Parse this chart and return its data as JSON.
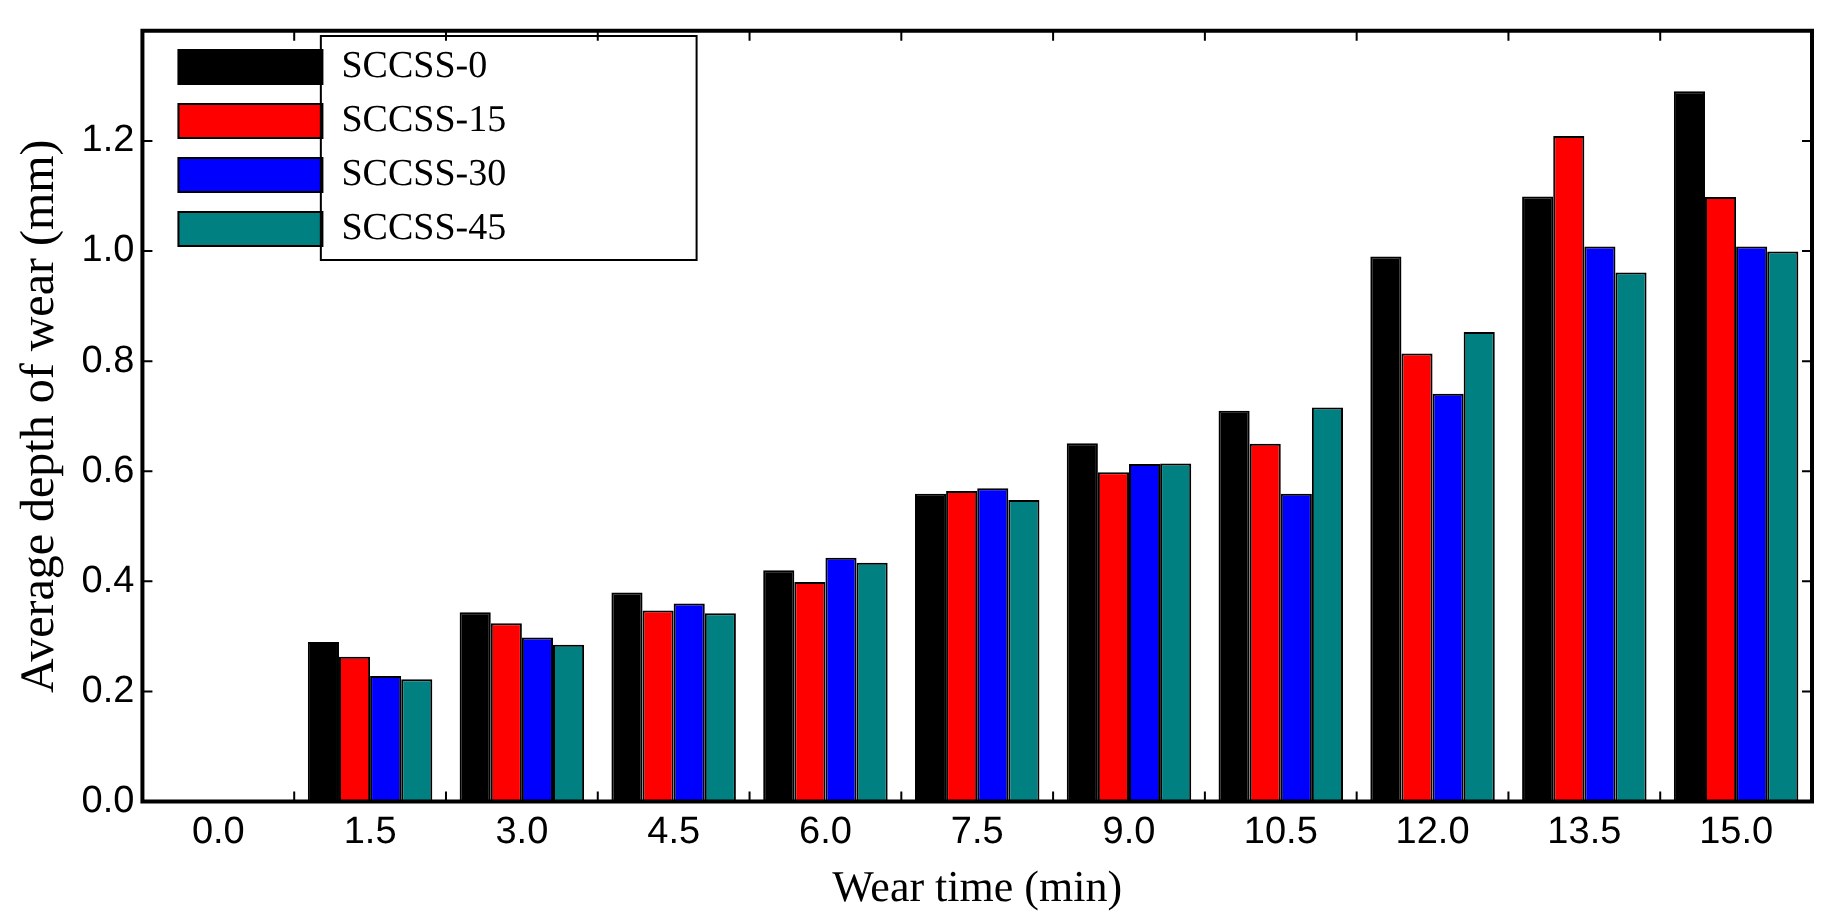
{
  "chart_data": {
    "type": "bar",
    "xlabel": "Wear time (min)",
    "ylabel": "Average depth of wear (mm)",
    "categories": [
      "0.0",
      "1.5",
      "3.0",
      "4.5",
      "6.0",
      "7.5",
      "9.0",
      "10.5",
      "12.0",
      "13.5",
      "15.0"
    ],
    "series": [
      {
        "name": "SCCSS-0",
        "color": "#000000",
        "values": [
          null,
          0.29,
          0.344,
          0.38,
          0.42,
          0.559,
          0.651,
          0.71,
          0.99,
          1.099,
          1.29
        ]
      },
      {
        "name": "SCCSS-15",
        "color": "#ff0000",
        "values": [
          null,
          0.263,
          0.324,
          0.347,
          0.399,
          0.564,
          0.598,
          0.65,
          0.814,
          1.209,
          1.098
        ]
      },
      {
        "name": "SCCSS-30",
        "color": "#0000ff",
        "values": [
          null,
          0.228,
          0.298,
          0.36,
          0.443,
          0.569,
          0.613,
          0.559,
          0.741,
          1.008,
          1.008
        ]
      },
      {
        "name": "SCCSS-45",
        "color": "#008080",
        "values": [
          null,
          0.222,
          0.285,
          0.342,
          0.434,
          0.548,
          0.614,
          0.716,
          0.853,
          0.961,
          0.999
        ]
      }
    ],
    "ylim": [
      0,
      1.4
    ],
    "yticks": [
      {
        "value": 0,
        "label": "0.0"
      },
      {
        "value": 0.2,
        "label": "0.2"
      },
      {
        "value": 0.4,
        "label": "0.4"
      },
      {
        "value": 0.6,
        "label": "0.6"
      },
      {
        "value": 0.8,
        "label": "0.8"
      },
      {
        "value": 1,
        "label": "1.0"
      },
      {
        "value": 1.2,
        "label": "1.2"
      }
    ],
    "grid": false,
    "legend": "top left"
  }
}
